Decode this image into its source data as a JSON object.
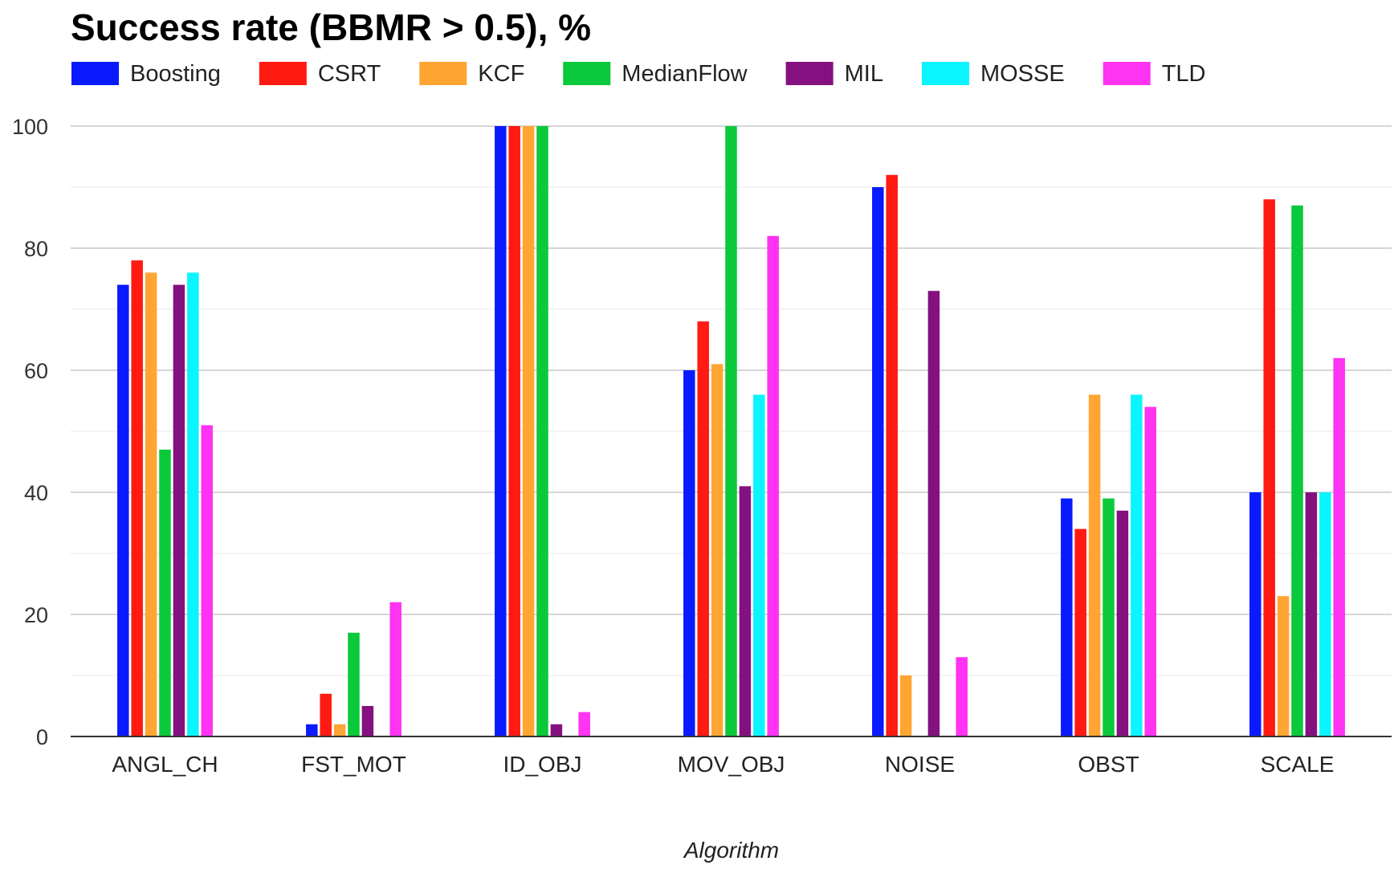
{
  "chart_data": {
    "type": "bar",
    "title": "Success rate (BBMR > 0.5), %",
    "xlabel": "Algorithm",
    "ylabel": "",
    "ylim": [
      0,
      100
    ],
    "yticks": [
      0,
      20,
      40,
      60,
      80,
      100
    ],
    "grid": true,
    "legend_position": "top",
    "categories": [
      "ANGL_CH",
      "FST_MOT",
      "ID_OBJ",
      "MOV_OBJ",
      "NOISE",
      "OBST",
      "SCALE"
    ],
    "series": [
      {
        "name": "Boosting",
        "color": "#0a1aff",
        "values": [
          74,
          2,
          100,
          60,
          90,
          39,
          40
        ]
      },
      {
        "name": "CSRT",
        "color": "#ff1a12",
        "values": [
          78,
          7,
          100,
          68,
          92,
          34,
          88
        ]
      },
      {
        "name": "KCF",
        "color": "#ffa533",
        "values": [
          76,
          2,
          100,
          61,
          10,
          56,
          23
        ]
      },
      {
        "name": "MedianFlow",
        "color": "#0ac93a",
        "values": [
          47,
          17,
          100,
          100,
          0,
          39,
          87
        ]
      },
      {
        "name": "MIL",
        "color": "#84117f",
        "values": [
          74,
          5,
          2,
          41,
          73,
          37,
          40
        ]
      },
      {
        "name": "MOSSE",
        "color": "#0af5ff",
        "values": [
          76,
          0,
          0,
          56,
          0,
          56,
          40
        ]
      },
      {
        "name": "TLD",
        "color": "#ff33f2",
        "values": [
          51,
          22,
          4,
          82,
          13,
          54,
          62
        ]
      }
    ]
  }
}
